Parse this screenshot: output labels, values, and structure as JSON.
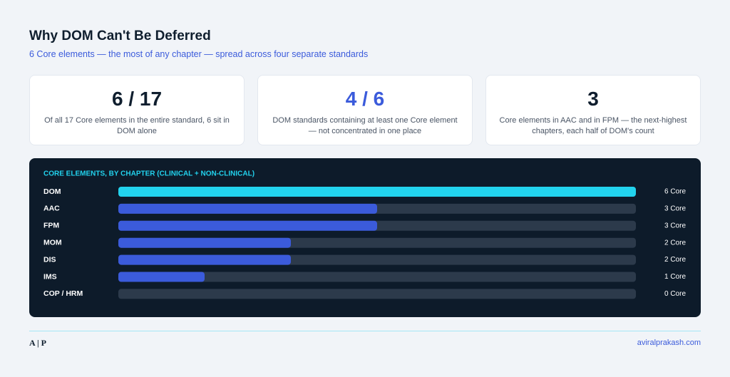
{
  "header": {
    "title": "Why DOM Can't Be Deferred",
    "subtitle": "6 Core elements — the most of any chapter — spread across four separate standards"
  },
  "stats": [
    {
      "value": "6 / 17",
      "description": "Of all 17 Core elements in the entire standard, 6 sit in DOM alone",
      "color": "#0f1e2e"
    },
    {
      "value": "4 / 6",
      "description": "DOM standards containing at least one Core element — not concentrated in one place",
      "color": "#3b5bdb"
    },
    {
      "value": "3",
      "description": "Core elements in AAC and in FPM — the next-highest chapters, each half of DOM's count",
      "color": "#0f1e2e"
    }
  ],
  "chart_data": {
    "type": "bar",
    "orientation": "horizontal",
    "title": "CORE ELEMENTS, BY CHAPTER (CLINICAL + NON-CLINICAL)",
    "categories": [
      "DOM",
      "AAC",
      "FPM",
      "MOM",
      "DIS",
      "IMS",
      "COP / HRM"
    ],
    "values": [
      6,
      3,
      3,
      2,
      2,
      1,
      0
    ],
    "value_labels": [
      "6 Core",
      "3 Core",
      "3 Core",
      "2 Core",
      "2 Core",
      "1 Core",
      "0 Core"
    ],
    "colors": [
      "#22d3ee",
      "#3b5bdb",
      "#3b5bdb",
      "#3b5bdb",
      "#3b5bdb",
      "#3b5bdb",
      "#3b5bdb"
    ],
    "xlim": [
      0,
      6
    ]
  },
  "footer": {
    "logo": "A | P",
    "url": "aviralprakash.com"
  }
}
